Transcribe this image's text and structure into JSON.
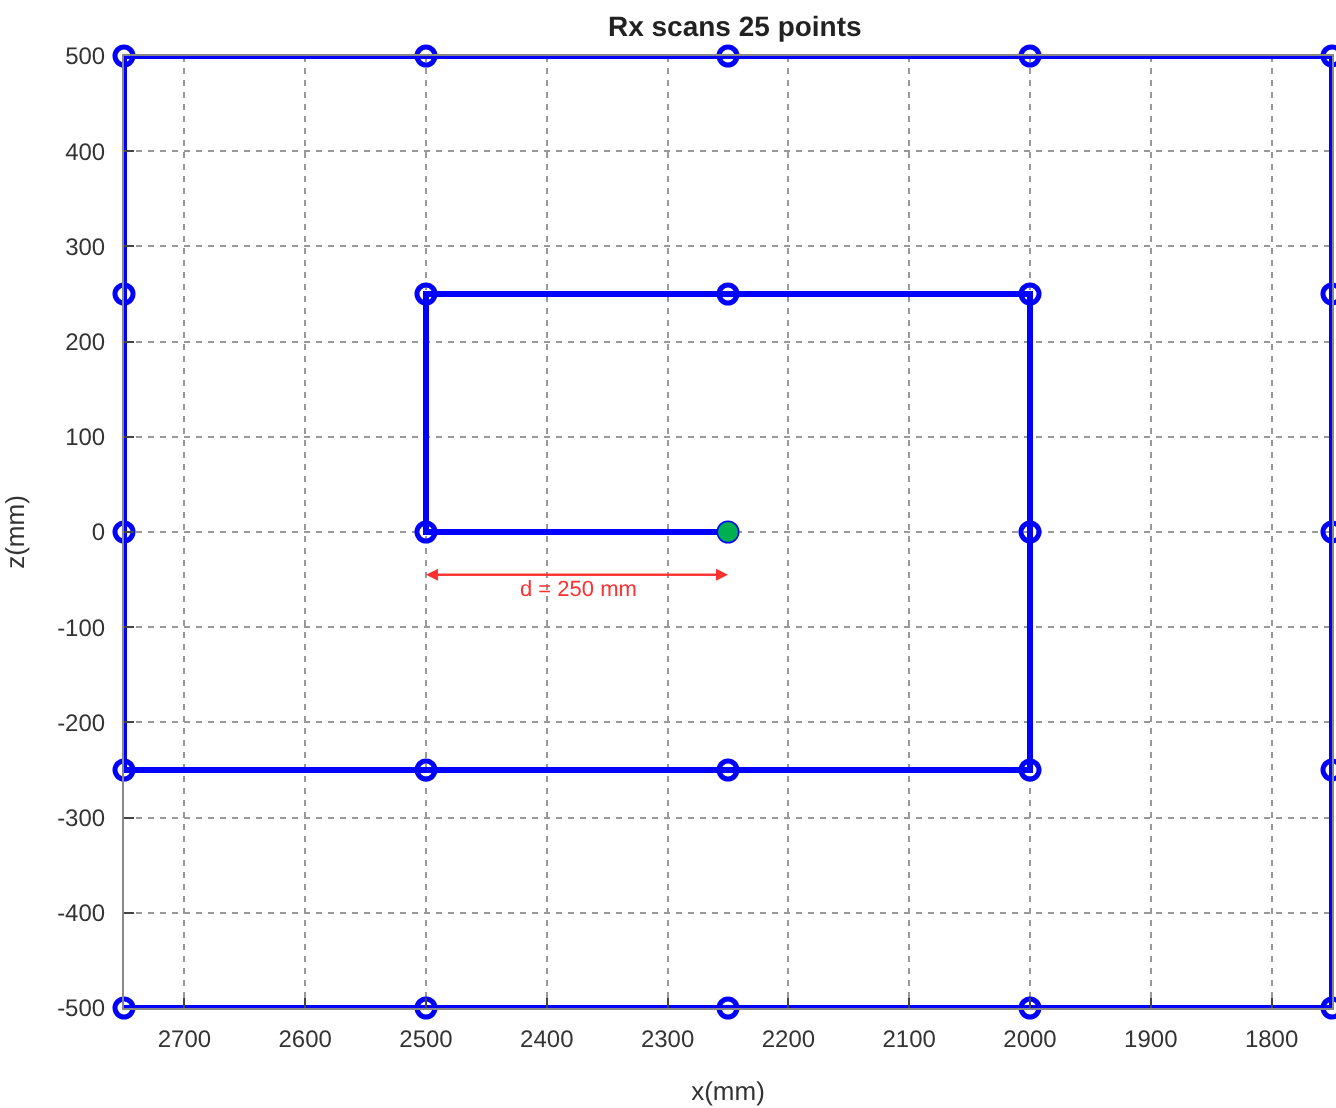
{
  "chart_data": {
    "type": "line",
    "title": "Rx scans 25 points",
    "xlabel": "x(mm)",
    "ylabel": "z(mm)",
    "xlim": [
      2750,
      1750
    ],
    "ylim": [
      -500,
      500
    ],
    "xticks": [
      2700,
      2600,
      2500,
      2400,
      2300,
      2200,
      2100,
      2000,
      1900,
      1800
    ],
    "yticks": [
      -500,
      -400,
      -300,
      -200,
      -100,
      0,
      100,
      200,
      300,
      400,
      500
    ],
    "grid": true,
    "marker": "circle",
    "line_style": "solid",
    "series": [
      {
        "color": "#0000ff",
        "x": [
          2250,
          2500,
          2500,
          2250,
          2000,
          2000,
          2000,
          2250,
          2500,
          2750,
          2750,
          2750,
          2750,
          2500,
          2250,
          2000,
          1750,
          1750,
          1750,
          1750,
          1750,
          2000,
          2250,
          2500,
          2750
        ],
        "values": [
          0,
          0,
          250,
          250,
          250,
          0,
          -250,
          -250,
          -250,
          -250,
          0,
          250,
          500,
          500,
          500,
          500,
          500,
          250,
          0,
          -250,
          -500,
          -500,
          -500,
          -500,
          -500
        ]
      },
      {
        "type": "scatter",
        "color": "#00b050",
        "x": [
          2250
        ],
        "values": [
          0
        ]
      }
    ],
    "annotations": [
      "d = 250 mm"
    ]
  }
}
